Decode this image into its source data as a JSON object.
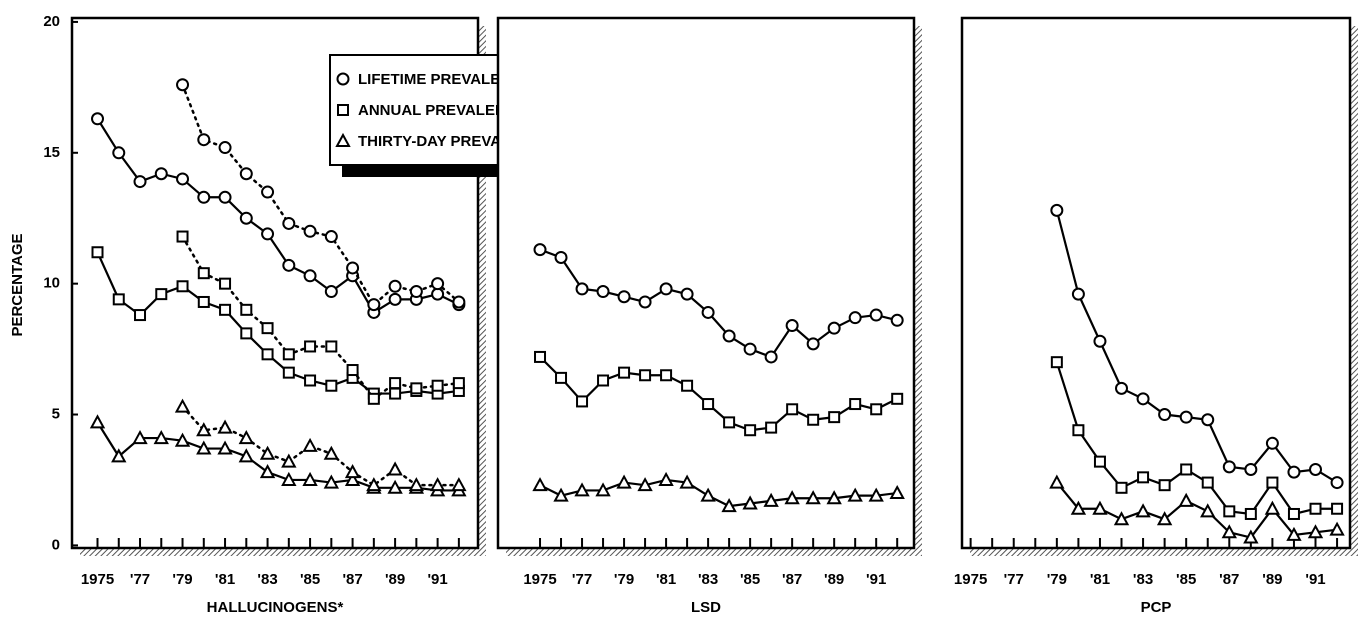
{
  "chart_data": [
    {
      "type": "line",
      "xlabel": "HALLUCINOGENS*",
      "ylabel": "PERCENTAGE",
      "x": [
        1975,
        1976,
        1977,
        1978,
        1979,
        1980,
        1981,
        1982,
        1983,
        1984,
        1985,
        1986,
        1987,
        1988,
        1989,
        1990,
        1991,
        1992
      ],
      "xlim": [
        1973.8,
        1992.9
      ],
      "ylim": [
        -0.1,
        20.15
      ],
      "yticks": [
        0,
        5,
        10,
        15,
        20
      ],
      "xticks": [
        1975,
        {
          "value": 1977,
          "label": "'77"
        },
        {
          "value": 1979,
          "label": "'79"
        },
        {
          "value": 1981,
          "label": "'81"
        },
        {
          "value": 1983,
          "label": "'83"
        },
        {
          "value": 1985,
          "label": "'85"
        },
        {
          "value": 1987,
          "label": "'87"
        },
        {
          "value": 1989,
          "label": "'89"
        },
        {
          "value": 1991,
          "label": "'91"
        }
      ],
      "series": [
        {
          "name": "LIFETIME PREVALENCE",
          "marker": "circle",
          "style": "solid",
          "color": "#000000",
          "values": [
            16.3,
            15.0,
            13.9,
            14.2,
            14.0,
            13.3,
            13.3,
            12.5,
            11.9,
            10.7,
            10.3,
            9.7,
            10.3,
            8.9,
            9.4,
            9.4,
            9.6,
            9.2
          ]
        },
        {
          "name": "ANNUAL PREVALENCE",
          "marker": "square",
          "style": "solid",
          "color": "#000000",
          "values": [
            11.2,
            9.4,
            8.8,
            9.6,
            9.9,
            9.3,
            9.0,
            8.1,
            7.3,
            6.6,
            6.3,
            6.1,
            6.4,
            5.8,
            5.8,
            5.9,
            5.8,
            5.9
          ]
        },
        {
          "name": "THIRTY-DAY PREVALENCE",
          "marker": "triangle",
          "style": "solid",
          "color": "#000000",
          "values": [
            4.7,
            3.4,
            4.1,
            4.1,
            4.0,
            3.7,
            3.7,
            3.4,
            2.8,
            2.5,
            2.5,
            2.4,
            2.5,
            2.2,
            2.2,
            2.2,
            2.1,
            2.1
          ]
        },
        {
          "marker": "circle",
          "style": "dotted",
          "color": "#000000",
          "values": [
            null,
            null,
            null,
            null,
            17.6,
            15.5,
            15.2,
            14.2,
            13.5,
            12.3,
            12.0,
            11.8,
            10.6,
            9.2,
            9.9,
            9.7,
            10.0,
            9.3
          ]
        },
        {
          "marker": "square",
          "style": "dotted",
          "color": "#000000",
          "values": [
            null,
            null,
            null,
            null,
            11.8,
            10.4,
            10.0,
            9.0,
            8.3,
            7.3,
            7.6,
            7.6,
            6.7,
            5.6,
            6.2,
            6.0,
            6.1,
            6.2
          ]
        },
        {
          "marker": "triangle",
          "style": "dotted",
          "color": "#000000",
          "values": [
            null,
            null,
            null,
            null,
            5.3,
            4.4,
            4.5,
            4.1,
            3.5,
            3.2,
            3.8,
            3.5,
            2.8,
            2.3,
            2.9,
            2.3,
            2.3,
            2.3
          ]
        }
      ]
    },
    {
      "type": "line",
      "xlabel": "LSD",
      "x": [
        1975,
        1976,
        1977,
        1978,
        1979,
        1980,
        1981,
        1982,
        1983,
        1984,
        1985,
        1986,
        1987,
        1988,
        1989,
        1990,
        1991,
        1992
      ],
      "xlim": [
        1973.0,
        1992.8
      ],
      "ylim": [
        -0.1,
        20.15
      ],
      "xticks": [
        1975,
        {
          "value": 1977,
          "label": "'77"
        },
        {
          "value": 1979,
          "label": "'79"
        },
        {
          "value": 1981,
          "label": "'81"
        },
        {
          "value": 1983,
          "label": "'83"
        },
        {
          "value": 1985,
          "label": "'85"
        },
        {
          "value": 1987,
          "label": "'87"
        },
        {
          "value": 1989,
          "label": "'89"
        },
        {
          "value": 1991,
          "label": "'91"
        }
      ],
      "series": [
        {
          "marker": "circle",
          "style": "solid",
          "color": "#000000",
          "values": [
            11.3,
            11.0,
            9.8,
            9.7,
            9.5,
            9.3,
            9.8,
            9.6,
            8.9,
            8.0,
            7.5,
            7.2,
            8.4,
            7.7,
            8.3,
            8.7,
            8.8,
            8.6
          ]
        },
        {
          "marker": "square",
          "style": "solid",
          "color": "#000000",
          "values": [
            7.2,
            6.4,
            5.5,
            6.3,
            6.6,
            6.5,
            6.5,
            6.1,
            5.4,
            4.7,
            4.4,
            4.5,
            5.2,
            4.8,
            4.9,
            5.4,
            5.2,
            5.6
          ]
        },
        {
          "marker": "triangle",
          "style": "solid",
          "color": "#000000",
          "values": [
            2.3,
            1.9,
            2.1,
            2.1,
            2.4,
            2.3,
            2.5,
            2.4,
            1.9,
            1.5,
            1.6,
            1.7,
            1.8,
            1.8,
            1.8,
            1.9,
            1.9,
            2.0
          ]
        }
      ]
    },
    {
      "type": "line",
      "xlabel": "PCP",
      "x": [
        1975,
        1976,
        1977,
        1978,
        1979,
        1980,
        1981,
        1982,
        1983,
        1984,
        1985,
        1986,
        1987,
        1988,
        1989,
        1990,
        1991,
        1992
      ],
      "xlim": [
        1974.6,
        1992.6
      ],
      "ylim": [
        -0.1,
        20.15
      ],
      "xticks": [
        1975,
        {
          "value": 1977,
          "label": "'77"
        },
        {
          "value": 1979,
          "label": "'79"
        },
        {
          "value": 1981,
          "label": "'81"
        },
        {
          "value": 1983,
          "label": "'83"
        },
        {
          "value": 1985,
          "label": "'85"
        },
        {
          "value": 1987,
          "label": "'87"
        },
        {
          "value": 1989,
          "label": "'89"
        },
        {
          "value": 1991,
          "label": "'91"
        }
      ],
      "series": [
        {
          "marker": "circle",
          "style": "solid",
          "color": "#000000",
          "values": [
            null,
            null,
            null,
            null,
            12.8,
            9.6,
            7.8,
            6.0,
            5.6,
            5.0,
            4.9,
            4.8,
            3.0,
            2.9,
            3.9,
            2.8,
            2.9,
            2.4
          ]
        },
        {
          "marker": "square",
          "style": "solid",
          "color": "#000000",
          "values": [
            null,
            null,
            null,
            null,
            7.0,
            4.4,
            3.2,
            2.2,
            2.6,
            2.3,
            2.9,
            2.4,
            1.3,
            1.2,
            2.4,
            1.2,
            1.4,
            1.4
          ]
        },
        {
          "marker": "triangle",
          "style": "solid",
          "color": "#000000",
          "values": [
            null,
            null,
            null,
            null,
            2.4,
            1.4,
            1.4,
            1.0,
            1.3,
            1.0,
            1.7,
            1.3,
            0.5,
            0.3,
            1.4,
            0.4,
            0.5,
            0.6
          ]
        }
      ]
    }
  ]
}
